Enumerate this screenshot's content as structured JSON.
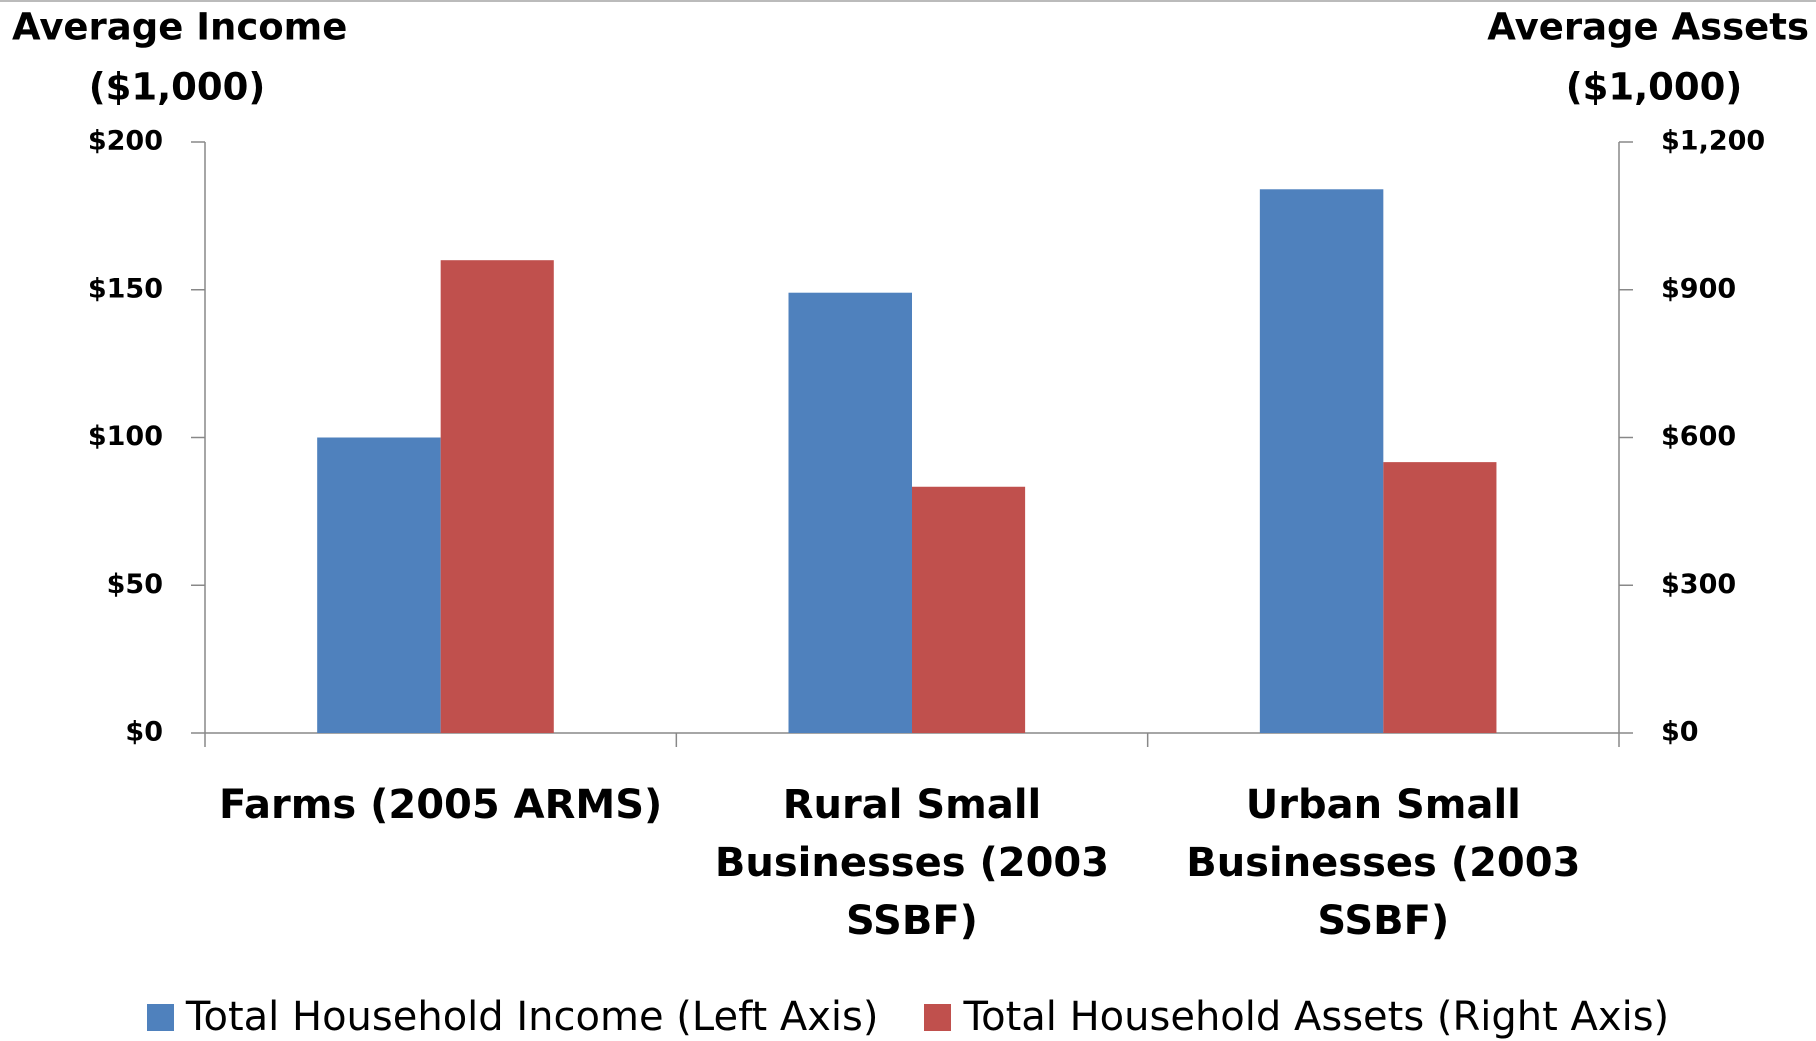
{
  "chart_data": {
    "type": "bar",
    "y_label": [
      "Average Income",
      "($1,000)"
    ],
    "y2_label": [
      "Average Assets",
      "($1,000)"
    ],
    "categories": [
      "Farms (2005 ARMS)",
      "Rural Small Businesses (2003 SSBF)",
      "Urban Small Businesses (2003 SSBF)"
    ],
    "series": [
      {
        "name": "Total Household Income (Left Axis)",
        "color": "#4f81bd",
        "values": [
          100,
          149,
          184
        ]
      },
      {
        "name": "Total Household Assets (Right Axis)",
        "color": "#c0504d",
        "values": [
          960,
          500,
          550
        ],
        "axis": "y2"
      }
    ],
    "ylim": [
      0,
      200
    ],
    "yticks": [
      {
        "value": 0,
        "label": "$0"
      },
      {
        "value": 50,
        "label": "$50"
      },
      {
        "value": 100,
        "label": "$100"
      },
      {
        "value": 150,
        "label": "$150"
      },
      {
        "value": 200,
        "label": "$200"
      }
    ],
    "y2lim": [
      0,
      1200
    ],
    "y2ticks": [
      {
        "value": 0,
        "label": "$0"
      },
      {
        "value": 300,
        "label": "$300"
      },
      {
        "value": 600,
        "label": "$600"
      },
      {
        "value": 900,
        "label": "$900"
      },
      {
        "value": 1200,
        "label": "$1,200"
      }
    ],
    "grid": false
  }
}
